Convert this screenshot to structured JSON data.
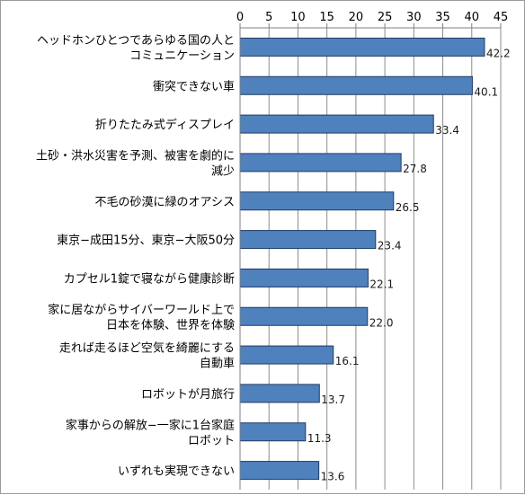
{
  "chart_data": {
    "type": "bar",
    "orientation": "horizontal",
    "categories": [
      [
        "ヘッドホンひとつであらゆる国の人と",
        "コミュニケーション"
      ],
      [
        "衝突できない車"
      ],
      [
        "折りたたみ式ディスプレイ"
      ],
      [
        "土砂・洪水災害を予測、被害を劇的に",
        "減少"
      ],
      [
        "不毛の砂漠に緑のオアシス"
      ],
      [
        "東京−成田15分、東京−大阪50分"
      ],
      [
        "カプセル1錠で寝ながら健康診断"
      ],
      [
        "家に居ながらサイバーワールド上で",
        "日本を体験、世界を体験"
      ],
      [
        "走れば走るほど空気を綺麗にする",
        "自動車"
      ],
      [
        "ロボットが月旅行"
      ],
      [
        "家事からの解放−一家に1台家庭",
        "ロボット"
      ],
      [
        "いずれも実現できない"
      ]
    ],
    "values": [
      42.2,
      40.1,
      33.4,
      27.8,
      26.5,
      23.4,
      22.1,
      22.0,
      16.1,
      13.7,
      11.3,
      13.6
    ],
    "value_labels": [
      "42.2",
      "40.1",
      "33.4",
      "27.8",
      "26.5",
      "23.4",
      "22.1",
      "22.0",
      "16.1",
      "13.7",
      "11.3",
      "13.6"
    ],
    "xlim": [
      0,
      45
    ],
    "x_ticks": [
      "0",
      "5",
      "10",
      "15",
      "20",
      "25",
      "30",
      "35",
      "40",
      "45"
    ],
    "x_axis_position": "top",
    "grid": true,
    "legend": "none",
    "colors": {
      "bar_fill": "#4f81bd",
      "bar_stroke": "#1f3a66",
      "grid": "#8c8c8c",
      "axis": "#7f7f7f"
    }
  }
}
